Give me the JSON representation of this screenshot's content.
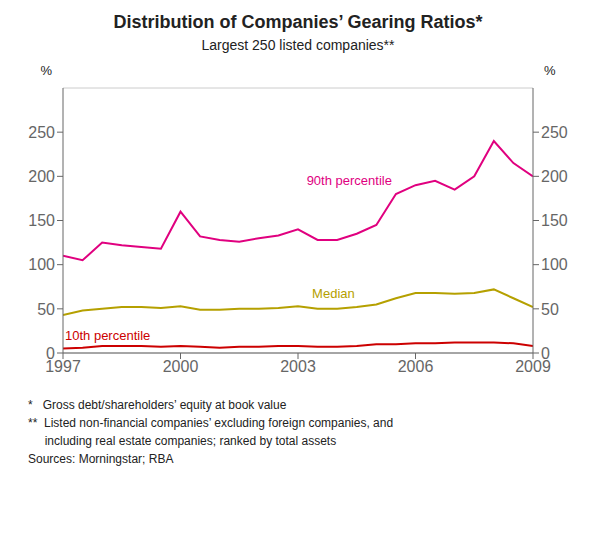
{
  "chart_data": {
    "type": "line",
    "title": "Distribution of Companies’ Gearing Ratios*",
    "subtitle": "Largest 250 listed companies**",
    "y_label": "%",
    "y2_label": "%",
    "footnotes": [
      "*   Gross debt/shareholders’ equity at book value",
      "**  Listed non-financial companies’ excluding foreign companies, and",
      "     including real estate companies; ranked by total assets",
      "Sources: Morningstar; RBA"
    ],
    "x": [
      1997,
      1997.5,
      1998,
      1998.5,
      1999,
      1999.5,
      2000,
      2000.5,
      2001,
      2001.5,
      2002,
      2002.5,
      2003,
      2003.5,
      2004,
      2004.5,
      2005,
      2005.5,
      2006,
      2006.5,
      2007,
      2007.5,
      2008,
      2008.5,
      2009
    ],
    "xlim": [
      1997,
      2009
    ],
    "xticks": [
      1997,
      2000,
      2003,
      2006,
      2009
    ],
    "ylim": [
      0,
      300
    ],
    "yticks": [
      0,
      50,
      100,
      150,
      200,
      250
    ],
    "y2lim": [
      0,
      300
    ],
    "y2ticks": [
      0,
      50,
      100,
      150,
      200,
      250
    ],
    "grid": true,
    "series": [
      {
        "name": "90th percentile",
        "color": "#e0007f",
        "values": [
          110,
          105,
          125,
          122,
          120,
          118,
          160,
          132,
          128,
          126,
          130,
          133,
          140,
          128,
          128,
          135,
          145,
          180,
          190,
          195,
          185,
          200,
          240,
          215,
          200
        ]
      },
      {
        "name": "Median",
        "color": "#b5a000",
        "values": [
          43,
          48,
          50,
          52,
          52,
          51,
          53,
          49,
          49,
          50,
          50,
          51,
          53,
          50,
          50,
          52,
          55,
          62,
          68,
          68,
          67,
          68,
          72,
          62,
          52
        ]
      },
      {
        "name": "10th percentile",
        "color": "#cc0000",
        "values": [
          5,
          6,
          8,
          8,
          8,
          7,
          8,
          7,
          6,
          7,
          7,
          8,
          8,
          7,
          7,
          8,
          10,
          10,
          11,
          11,
          12,
          12,
          12,
          11,
          8
        ]
      }
    ]
  }
}
